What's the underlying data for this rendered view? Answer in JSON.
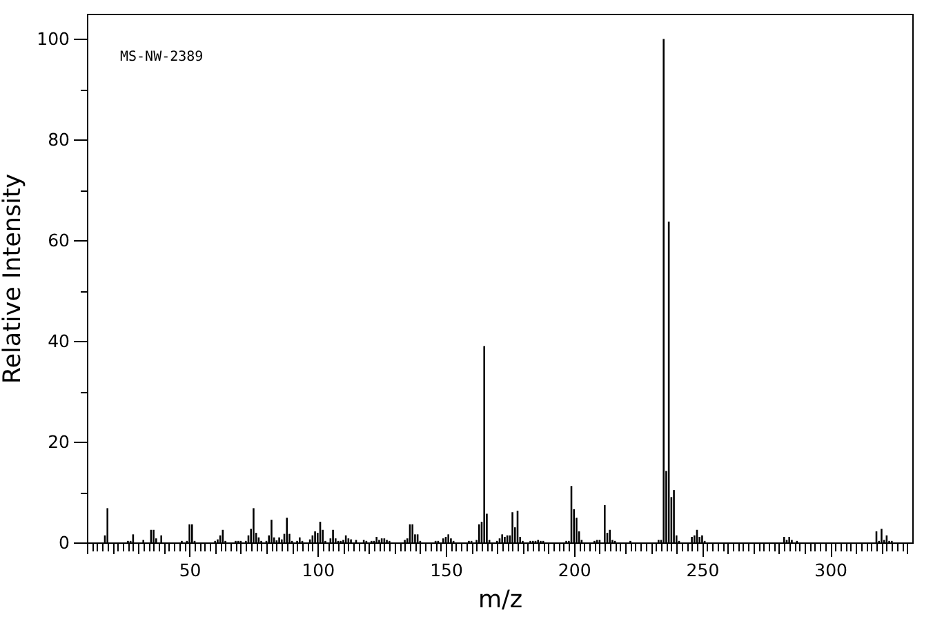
{
  "chart_data": {
    "type": "bar",
    "xlabel": "m/z",
    "ylabel": "Relative Intensity",
    "annotations": [
      "MS-NW-2389"
    ],
    "color": "#000000",
    "x": [
      17,
      18,
      26,
      27,
      28,
      32,
      35,
      36,
      37,
      39,
      47,
      49,
      50,
      51,
      52,
      60,
      61,
      62,
      63,
      64,
      68,
      69,
      70,
      72,
      73,
      74,
      75,
      76,
      77,
      78,
      80,
      81,
      82,
      83,
      84,
      85,
      86,
      87,
      88,
      89,
      90,
      92,
      93,
      94,
      97,
      98,
      99,
      100,
      101,
      102,
      103,
      105,
      106,
      107,
      108,
      109,
      110,
      111,
      112,
      113,
      115,
      118,
      119,
      121,
      122,
      123,
      124,
      125,
      126,
      127,
      128,
      134,
      135,
      136,
      137,
      138,
      139,
      140,
      146,
      147,
      149,
      150,
      151,
      152,
      153,
      159,
      160,
      162,
      163,
      164,
      165,
      166,
      167,
      170,
      171,
      172,
      173,
      174,
      175,
      176,
      177,
      178,
      179,
      180,
      183,
      184,
      185,
      186,
      187,
      188,
      197,
      198,
      199,
      200,
      201,
      202,
      203,
      208,
      209,
      210,
      212,
      213,
      214,
      215,
      216,
      222,
      233,
      234,
      235,
      236,
      237,
      238,
      239,
      240,
      241,
      246,
      247,
      248,
      249,
      250,
      251,
      282,
      283,
      284,
      285,
      287,
      318,
      319,
      320,
      321,
      322,
      323,
      324
    ],
    "values": [
      1.4,
      6.8,
      0.3,
      0.3,
      1.6,
      0.5,
      2.5,
      2.5,
      0.8,
      1.4,
      0.3,
      0.3,
      3.6,
      3.6,
      0.3,
      0.3,
      0.6,
      1.4,
      2.5,
      0.3,
      0.3,
      0.3,
      0.3,
      0.3,
      1.4,
      2.7,
      6.8,
      1.9,
      1,
      0.3,
      0.3,
      1.4,
      4.5,
      1,
      0.4,
      1,
      0.6,
      1.7,
      4.9,
      1.7,
      0.3,
      0.3,
      1,
      0.3,
      0.6,
      1.4,
      2.2,
      1.9,
      4.1,
      2.5,
      0.3,
      0.8,
      2.5,
      0.8,
      0.3,
      0.3,
      0.5,
      1.4,
      0.8,
      0.6,
      0.5,
      0.5,
      0.3,
      0.3,
      0.3,
      1.1,
      0.5,
      0.8,
      0.8,
      0.5,
      0.3,
      0.5,
      0.8,
      3.6,
      3.6,
      1.6,
      1.6,
      0.3,
      0.3,
      0.3,
      0.8,
      1.1,
      1.6,
      0.8,
      0.3,
      0.3,
      0.3,
      0.5,
      3.6,
      4.1,
      39,
      5.7,
      0.5,
      0.3,
      0.8,
      1.6,
      1.1,
      1.4,
      1.4,
      6,
      3,
      6.3,
      1.1,
      0.3,
      0.3,
      0.3,
      0.3,
      0.5,
      0.3,
      0.3,
      0.3,
      0.3,
      11.2,
      6.6,
      4.9,
      2.2,
      0.5,
      0.3,
      0.5,
      0.5,
      7.4,
      1.9,
      2.5,
      0.5,
      0.3,
      0.3,
      0.5,
      0.5,
      100,
      14.2,
      63.7,
      9,
      10.4,
      1.4,
      0.3,
      1.1,
      1.4,
      2.5,
      1.1,
      1.4,
      0.3,
      1.1,
      0.5,
      1.1,
      0.5,
      0.3,
      2.2,
      0.3,
      2.7,
      0.5,
      1.4,
      0.3,
      0.3
    ],
    "xlim": [
      10,
      332
    ],
    "ylim": [
      0,
      105
    ],
    "xticks": [
      {
        "value": 10,
        "label": null
      },
      {
        "value": 12,
        "label": null
      },
      {
        "value": 14,
        "label": null
      },
      {
        "value": 16,
        "label": null
      },
      {
        "value": 18,
        "label": null
      },
      {
        "value": 20,
        "label": null
      },
      {
        "value": 22,
        "label": null
      },
      {
        "value": 24,
        "label": null
      },
      {
        "value": 26,
        "label": null
      },
      {
        "value": 28,
        "label": null
      },
      {
        "value": 30,
        "label": null
      },
      {
        "value": 32,
        "label": null
      },
      {
        "value": 34,
        "label": null
      },
      {
        "value": 36,
        "label": null
      },
      {
        "value": 38,
        "label": null
      },
      {
        "value": 40,
        "label": null
      },
      {
        "value": 42,
        "label": null
      },
      {
        "value": 44,
        "label": null
      },
      {
        "value": 46,
        "label": null
      },
      {
        "value": 48,
        "label": null
      },
      50,
      {
        "value": 52,
        "label": null
      },
      {
        "value": 54,
        "label": null
      },
      {
        "value": 56,
        "label": null
      },
      {
        "value": 58,
        "label": null
      },
      {
        "value": 60,
        "label": null
      },
      {
        "value": 62,
        "label": null
      },
      {
        "value": 64,
        "label": null
      },
      {
        "value": 66,
        "label": null
      },
      {
        "value": 68,
        "label": null
      },
      {
        "value": 70,
        "label": null
      },
      {
        "value": 72,
        "label": null
      },
      {
        "value": 74,
        "label": null
      },
      {
        "value": 76,
        "label": null
      },
      {
        "value": 78,
        "label": null
      },
      {
        "value": 80,
        "label": null
      },
      {
        "value": 82,
        "label": null
      },
      {
        "value": 84,
        "label": null
      },
      {
        "value": 86,
        "label": null
      },
      {
        "value": 88,
        "label": null
      },
      {
        "value": 90,
        "label": null
      },
      {
        "value": 92,
        "label": null
      },
      {
        "value": 94,
        "label": null
      },
      {
        "value": 96,
        "label": null
      },
      {
        "value": 98,
        "label": null
      },
      100,
      {
        "value": 102,
        "label": null
      },
      {
        "value": 104,
        "label": null
      },
      {
        "value": 106,
        "label": null
      },
      {
        "value": 108,
        "label": null
      },
      {
        "value": 110,
        "label": null
      },
      {
        "value": 112,
        "label": null
      },
      {
        "value": 114,
        "label": null
      },
      {
        "value": 116,
        "label": null
      },
      {
        "value": 118,
        "label": null
      },
      {
        "value": 120,
        "label": null
      },
      {
        "value": 122,
        "label": null
      },
      {
        "value": 124,
        "label": null
      },
      {
        "value": 126,
        "label": null
      },
      {
        "value": 128,
        "label": null
      },
      {
        "value": 130,
        "label": null
      },
      {
        "value": 132,
        "label": null
      },
      {
        "value": 134,
        "label": null
      },
      {
        "value": 136,
        "label": null
      },
      {
        "value": 138,
        "label": null
      },
      {
        "value": 140,
        "label": null
      },
      {
        "value": 142,
        "label": null
      },
      {
        "value": 144,
        "label": null
      },
      {
        "value": 146,
        "label": null
      },
      {
        "value": 148,
        "label": null
      },
      150,
      {
        "value": 152,
        "label": null
      },
      {
        "value": 154,
        "label": null
      },
      {
        "value": 156,
        "label": null
      },
      {
        "value": 158,
        "label": null
      },
      {
        "value": 160,
        "label": null
      },
      {
        "value": 162,
        "label": null
      },
      {
        "value": 164,
        "label": null
      },
      {
        "value": 166,
        "label": null
      },
      {
        "value": 168,
        "label": null
      },
      {
        "value": 170,
        "label": null
      },
      {
        "value": 172,
        "label": null
      },
      {
        "value": 174,
        "label": null
      },
      {
        "value": 176,
        "label": null
      },
      {
        "value": 178,
        "label": null
      },
      {
        "value": 180,
        "label": null
      },
      {
        "value": 182,
        "label": null
      },
      {
        "value": 184,
        "label": null
      },
      {
        "value": 186,
        "label": null
      },
      {
        "value": 188,
        "label": null
      },
      {
        "value": 190,
        "label": null
      },
      {
        "value": 192,
        "label": null
      },
      {
        "value": 194,
        "label": null
      },
      {
        "value": 196,
        "label": null
      },
      {
        "value": 198,
        "label": null
      },
      200,
      {
        "value": 202,
        "label": null
      },
      {
        "value": 204,
        "label": null
      },
      {
        "value": 206,
        "label": null
      },
      {
        "value": 208,
        "label": null
      },
      {
        "value": 210,
        "label": null
      },
      {
        "value": 212,
        "label": null
      },
      {
        "value": 214,
        "label": null
      },
      {
        "value": 216,
        "label": null
      },
      {
        "value": 218,
        "label": null
      },
      {
        "value": 220,
        "label": null
      },
      {
        "value": 222,
        "label": null
      },
      {
        "value": 224,
        "label": null
      },
      {
        "value": 226,
        "label": null
      },
      {
        "value": 228,
        "label": null
      },
      {
        "value": 230,
        "label": null
      },
      {
        "value": 232,
        "label": null
      },
      {
        "value": 234,
        "label": null
      },
      {
        "value": 236,
        "label": null
      },
      {
        "value": 238,
        "label": null
      },
      {
        "value": 240,
        "label": null
      },
      {
        "value": 242,
        "label": null
      },
      {
        "value": 244,
        "label": null
      },
      {
        "value": 246,
        "label": null
      },
      {
        "value": 248,
        "label": null
      },
      250,
      {
        "value": 252,
        "label": null
      },
      {
        "value": 254,
        "label": null
      },
      {
        "value": 256,
        "label": null
      },
      {
        "value": 258,
        "label": null
      },
      {
        "value": 260,
        "label": null
      },
      {
        "value": 262,
        "label": null
      },
      {
        "value": 264,
        "label": null
      },
      {
        "value": 266,
        "label": null
      },
      {
        "value": 268,
        "label": null
      },
      {
        "value": 270,
        "label": null
      },
      {
        "value": 272,
        "label": null
      },
      {
        "value": 274,
        "label": null
      },
      {
        "value": 276,
        "label": null
      },
      {
        "value": 278,
        "label": null
      },
      {
        "value": 280,
        "label": null
      },
      {
        "value": 282,
        "label": null
      },
      {
        "value": 284,
        "label": null
      },
      {
        "value": 286,
        "label": null
      },
      {
        "value": 288,
        "label": null
      },
      {
        "value": 290,
        "label": null
      },
      {
        "value": 292,
        "label": null
      },
      {
        "value": 294,
        "label": null
      },
      {
        "value": 296,
        "label": null
      },
      {
        "value": 298,
        "label": null
      },
      300,
      {
        "value": 302,
        "label": null
      },
      {
        "value": 304,
        "label": null
      },
      {
        "value": 306,
        "label": null
      },
      {
        "value": 308,
        "label": null
      },
      {
        "value": 310,
        "label": null
      },
      {
        "value": 312,
        "label": null
      },
      {
        "value": 314,
        "label": null
      },
      {
        "value": 316,
        "label": null
      },
      {
        "value": 318,
        "label": null
      },
      {
        "value": 320,
        "label": null
      },
      {
        "value": 322,
        "label": null
      },
      {
        "value": 324,
        "label": null
      },
      {
        "value": 326,
        "label": null
      },
      {
        "value": 328,
        "label": null
      },
      {
        "value": 330,
        "label": null
      }
    ],
    "yticks": [
      0,
      {
        "value": 10,
        "label": null
      },
      20,
      {
        "value": 30,
        "label": null
      },
      40,
      {
        "value": 50,
        "label": null
      },
      60,
      {
        "value": 70,
        "label": null
      },
      80,
      {
        "value": 90,
        "label": null
      },
      100
    ]
  }
}
